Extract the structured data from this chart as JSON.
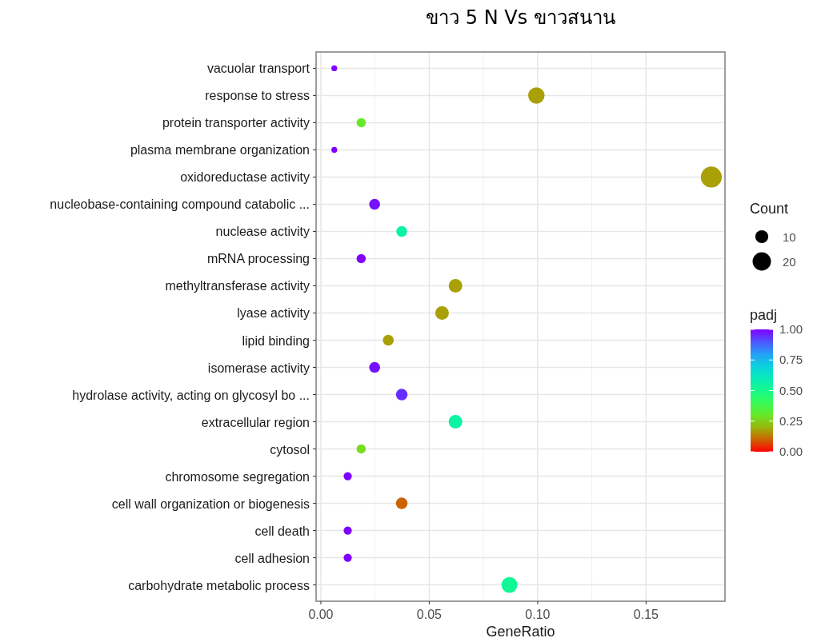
{
  "chart_data": {
    "type": "bubble",
    "orientation": "horizontal",
    "title": "ขาว 5 N Vs ขาวสนาน",
    "xlabel": "GeneRatio",
    "legend_title": "Count",
    "clabel": "padj",
    "categories": [
      "vacuolar transport",
      "response to stress",
      "protein transporter activity",
      "plasma membrane organization",
      "oxidoreductase activity",
      "nucleobase-containing compound catabolic  ...",
      "nuclease activity",
      "mRNA processing",
      "methyltransferase activity",
      "lyase activity",
      "lipid binding",
      "isomerase activity",
      "hydrolase activity, acting on glycosyl bo ...",
      "extracellular region",
      "cytosol",
      "chromosome segregation",
      "cell wall organization or biogenesis",
      "cell death",
      "cell adhesion",
      "carbohydrate metabolic process"
    ],
    "values": [
      0.0062,
      0.0994,
      0.0186,
      0.0062,
      0.1801,
      0.0248,
      0.0373,
      0.0186,
      0.0621,
      0.0559,
      0.0311,
      0.0248,
      0.0373,
      0.0621,
      0.0186,
      0.0124,
      0.0373,
      0.0124,
      0.0124,
      0.087
    ],
    "sizes": [
      2,
      16,
      5,
      2,
      26,
      7,
      7,
      5,
      11,
      11,
      7,
      7,
      8,
      11,
      5,
      4,
      8,
      4,
      4,
      15
    ],
    "size_legend": [
      10,
      20
    ],
    "cvalues": [
      1,
      0.17,
      0.3,
      1,
      0.17,
      0.98,
      0.55,
      1,
      0.17,
      0.17,
      0.17,
      0.98,
      0.95,
      0.55,
      0.27,
      1,
      0.1,
      1,
      1,
      0.52
    ],
    "clim": [
      0,
      1
    ],
    "cticks": [
      {
        "value": 0,
        "label": "0.00"
      },
      {
        "value": 0.25,
        "label": "0.25"
      },
      {
        "value": 0.5,
        "label": "0.50"
      },
      {
        "value": 0.75,
        "label": "0.75"
      },
      {
        "value": 1,
        "label": "1.00"
      }
    ],
    "xlim": [
      -0.0022,
      0.1864
    ],
    "xticks": [
      {
        "value": 0,
        "label": "0.00"
      },
      {
        "value": 0.05,
        "label": "0.05"
      },
      {
        "value": 0.1,
        "label": "0.10"
      },
      {
        "value": 0.15,
        "label": "0.15"
      }
    ],
    "grid": true,
    "marker": "circle"
  }
}
